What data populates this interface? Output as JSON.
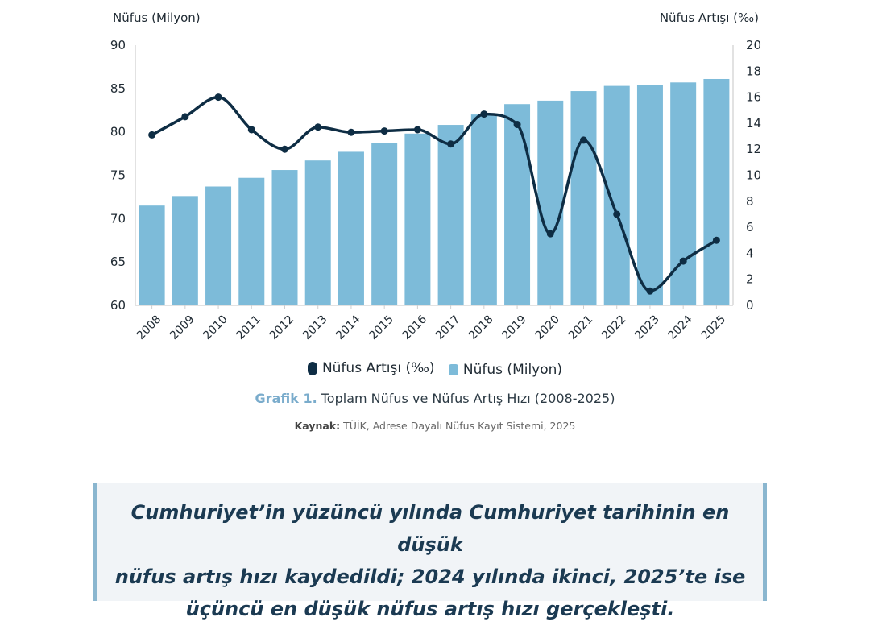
{
  "chart_data": {
    "type": "bar",
    "categories": [
      "2008",
      "2009",
      "2010",
      "2011",
      "2012",
      "2013",
      "2014",
      "2015",
      "2016",
      "2017",
      "2018",
      "2019",
      "2020",
      "2021",
      "2022",
      "2023",
      "2024",
      "2025"
    ],
    "series": [
      {
        "name": "Nüfus (Milyon)",
        "type": "bar",
        "axis": "left",
        "values": [
          71.5,
          72.6,
          73.7,
          74.7,
          75.6,
          76.7,
          77.7,
          78.7,
          79.8,
          80.8,
          82.0,
          83.2,
          83.6,
          84.7,
          85.3,
          85.4,
          85.7,
          86.1
        ]
      },
      {
        "name": "Nüfus Artışı (‰)",
        "type": "line",
        "axis": "right",
        "values": [
          13.1,
          14.5,
          16.0,
          13.5,
          12.0,
          13.7,
          13.3,
          13.4,
          13.5,
          12.4,
          14.7,
          13.9,
          5.5,
          12.7,
          7.0,
          1.1,
          3.4,
          5.0
        ]
      }
    ],
    "ylabel": "Nüfus (Milyon)",
    "y2label": "Nüfus Artışı (‰)",
    "ylim": [
      60,
      90
    ],
    "y2lim": [
      0,
      20
    ],
    "yticks": [
      60,
      65,
      70,
      75,
      80,
      85,
      90
    ],
    "y2ticks": [
      0,
      2,
      4,
      6,
      8,
      10,
      12,
      14,
      16,
      18,
      20
    ],
    "legend": [
      "Nüfus Artışı (‰)",
      "Nüfus (Milyon)"
    ],
    "legend_position": "bottom",
    "grid": false,
    "colors": {
      "bar": "#7dbbd9",
      "line": "#0e2d44"
    }
  },
  "caption": {
    "label": "Grafik 1.",
    "text": " Toplam Nüfus ve Nüfus Artış Hızı (2008-2025)"
  },
  "source": {
    "label": "Kaynak:",
    "text": " TÜİK, Adrese Dayalı Nüfus Kayıt Sistemi, 2025"
  },
  "callout": {
    "line1": "Cumhuriyet’in yüzüncü yılında Cumhuriyet tarihinin en düşük",
    "line2": "nüfus artış hızı kaydedildi; 2024 yılında ikinci, 2025’te ise",
    "line3": "üçüncü en düşük nüfus artış hızı gerçekleşti."
  }
}
